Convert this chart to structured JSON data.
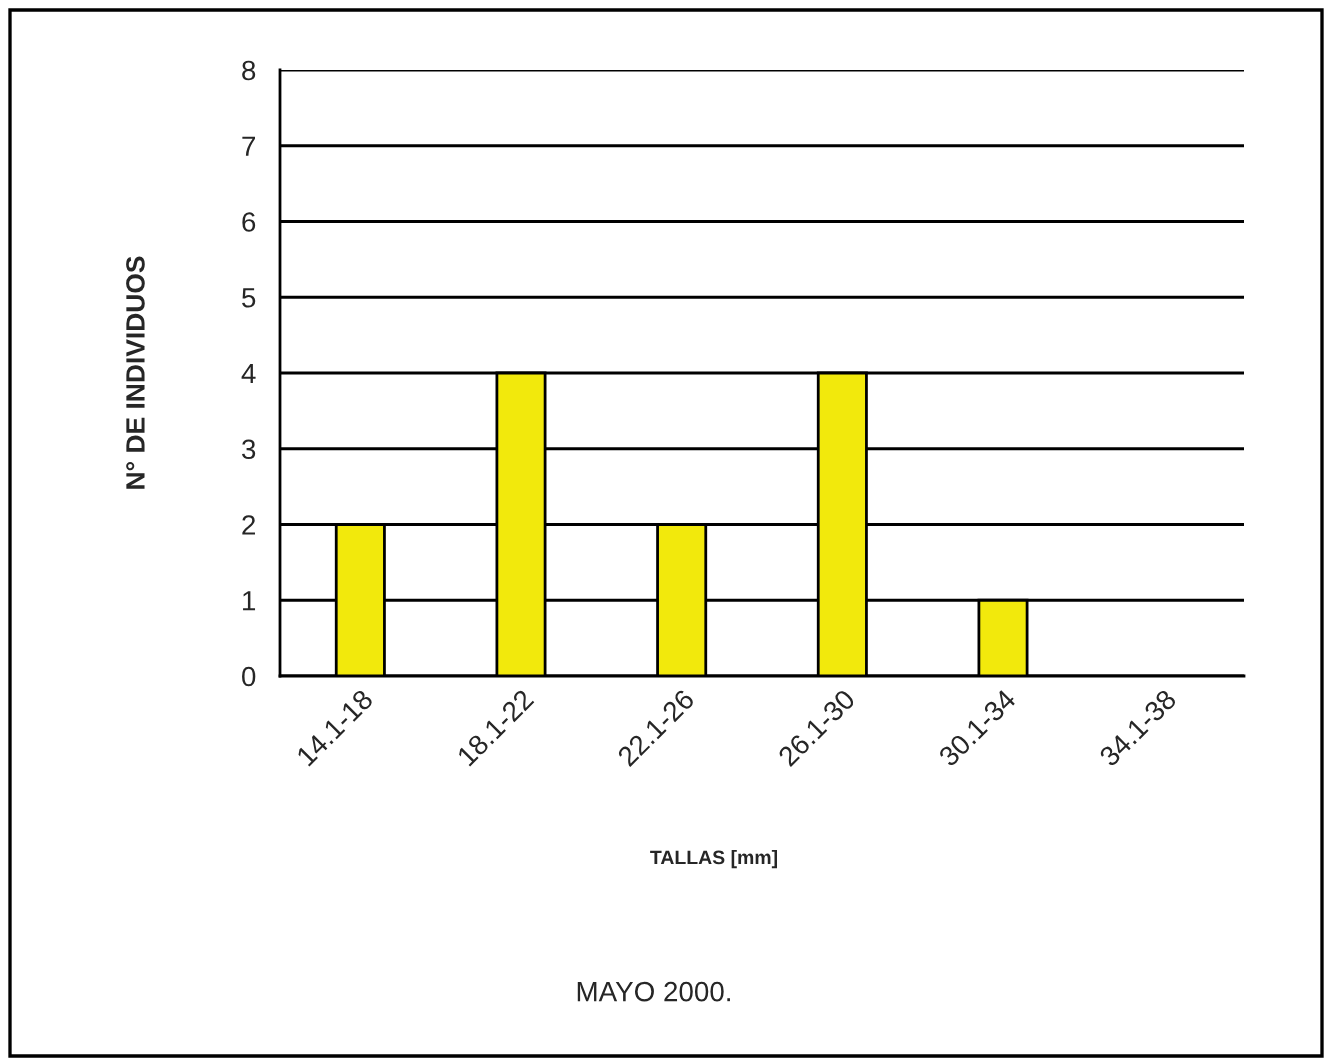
{
  "chart_data": {
    "type": "bar",
    "xlabel": "TALLAS [mm]",
    "ylabel": "N° DE INDIVIDUOS",
    "annotations": [
      "MAYO 2000."
    ],
    "categories": [
      "14.1-18",
      "18.1-22",
      "22.1-26",
      "26.1-30",
      "30.1-34",
      "34.1-38"
    ],
    "values": [
      2,
      4,
      2,
      4,
      1,
      0
    ],
    "color": "#f2e90c",
    "ylim": [
      0,
      8
    ],
    "yticks": [
      0,
      1,
      2,
      3,
      4,
      5,
      6,
      7,
      8
    ],
    "grid": "y"
  }
}
